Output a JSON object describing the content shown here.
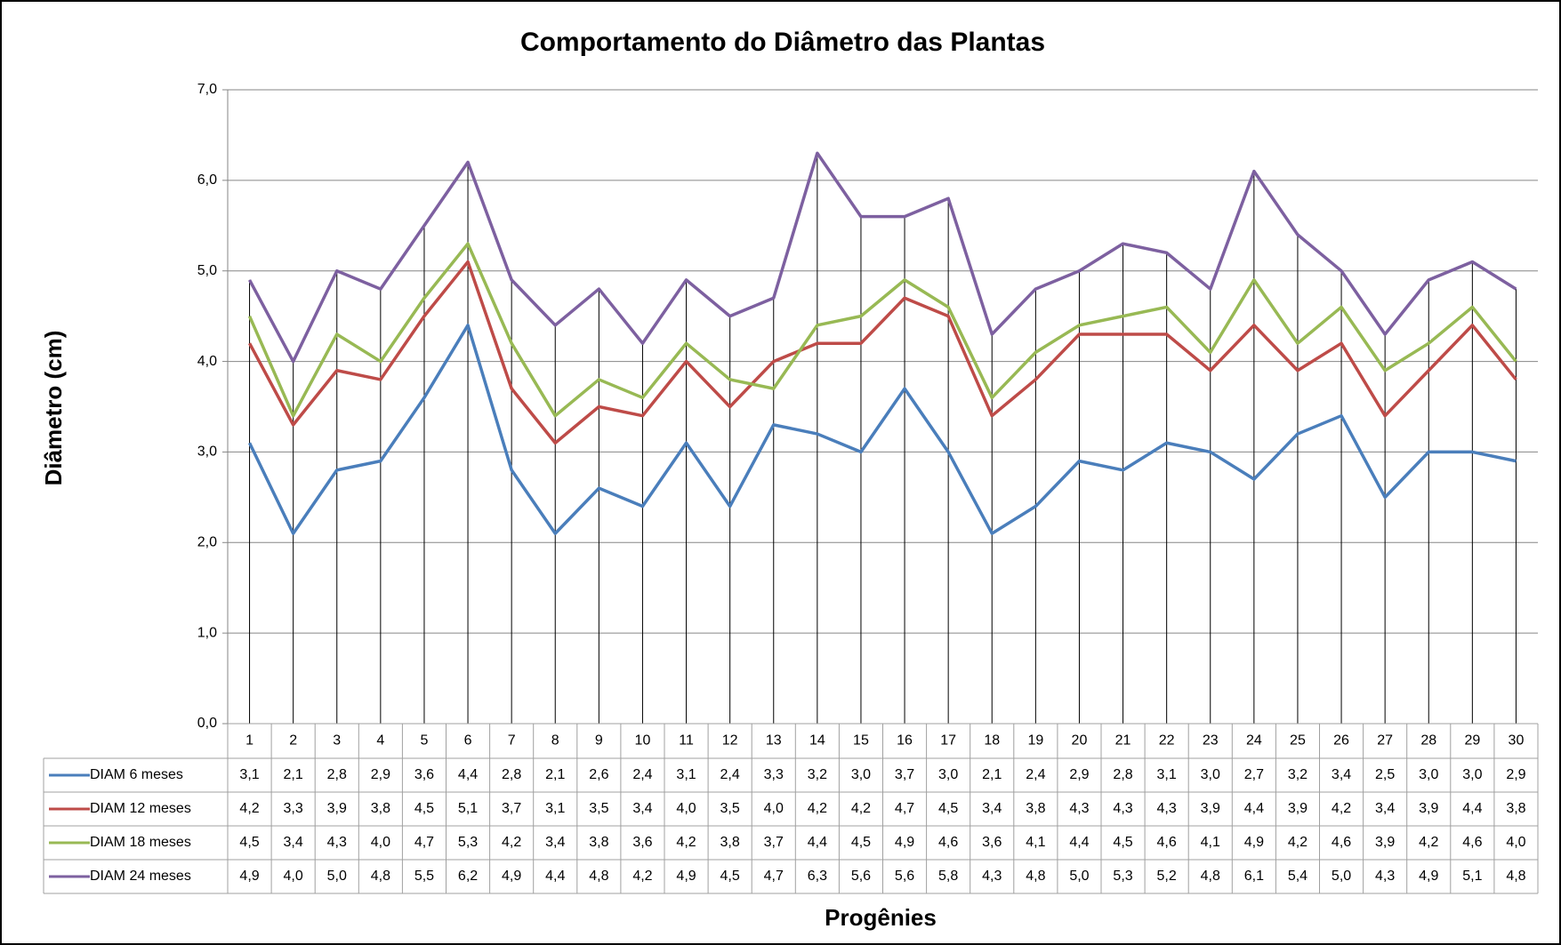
{
  "chart_data": {
    "type": "line",
    "title": "Comportamento do Diâmetro das Plantas",
    "x_label": "Progênies",
    "y_label": "Diâmetro (cm)",
    "categories": [
      "1",
      "2",
      "3",
      "4",
      "5",
      "6",
      "7",
      "8",
      "9",
      "10",
      "11",
      "12",
      "13",
      "14",
      "15",
      "16",
      "17",
      "18",
      "19",
      "20",
      "21",
      "22",
      "23",
      "24",
      "25",
      "26",
      "27",
      "28",
      "29",
      "30"
    ],
    "ylim": [
      0,
      7
    ],
    "yticks": [
      {
        "value": 0,
        "label": "0,0"
      },
      {
        "value": 1,
        "label": "1,0"
      },
      {
        "value": 2,
        "label": "2,0"
      },
      {
        "value": 3,
        "label": "3,0"
      },
      {
        "value": 4,
        "label": "4,0"
      },
      {
        "value": 5,
        "label": "5,0"
      },
      {
        "value": 6,
        "label": "6,0"
      },
      {
        "value": 7,
        "label": "7,0"
      }
    ],
    "grid": true,
    "drop_lines": true,
    "data_table": true,
    "series": [
      {
        "name": "DIAM 6 meses",
        "color": "#4a7ebb",
        "values": [
          3.1,
          2.1,
          2.8,
          2.9,
          3.6,
          4.4,
          2.8,
          2.1,
          2.6,
          2.4,
          3.1,
          2.4,
          3.3,
          3.2,
          3.0,
          3.7,
          3.0,
          2.1,
          2.4,
          2.9,
          2.8,
          3.1,
          3.0,
          2.7,
          3.2,
          3.4,
          2.5,
          3.0,
          3.0,
          2.9
        ],
        "value_labels": [
          "3,1",
          "2,1",
          "2,8",
          "2,9",
          "3,6",
          "4,4",
          "2,8",
          "2,1",
          "2,6",
          "2,4",
          "3,1",
          "2,4",
          "3,3",
          "3,2",
          "3,0",
          "3,7",
          "3,0",
          "2,1",
          "2,4",
          "2,9",
          "2,8",
          "3,1",
          "3,0",
          "2,7",
          "3,2",
          "3,4",
          "2,5",
          "3,0",
          "3,0",
          "2,9"
        ]
      },
      {
        "name": "DIAM 12 meses",
        "color": "#be4b48",
        "values": [
          4.2,
          3.3,
          3.9,
          3.8,
          4.5,
          5.1,
          3.7,
          3.1,
          3.5,
          3.4,
          4.0,
          3.5,
          4.0,
          4.2,
          4.2,
          4.7,
          4.5,
          3.4,
          3.8,
          4.3,
          4.3,
          4.3,
          3.9,
          4.4,
          3.9,
          4.2,
          3.4,
          3.9,
          4.4,
          3.8
        ],
        "value_labels": [
          "4,2",
          "3,3",
          "3,9",
          "3,8",
          "4,5",
          "5,1",
          "3,7",
          "3,1",
          "3,5",
          "3,4",
          "4,0",
          "3,5",
          "4,0",
          "4,2",
          "4,2",
          "4,7",
          "4,5",
          "3,4",
          "3,8",
          "4,3",
          "4,3",
          "4,3",
          "3,9",
          "4,4",
          "3,9",
          "4,2",
          "3,4",
          "3,9",
          "4,4",
          "3,8"
        ]
      },
      {
        "name": "DIAM 18 meses",
        "color": "#98b954",
        "values": [
          4.5,
          3.4,
          4.3,
          4.0,
          4.7,
          5.3,
          4.2,
          3.4,
          3.8,
          3.6,
          4.2,
          3.8,
          3.7,
          4.4,
          4.5,
          4.9,
          4.6,
          3.6,
          4.1,
          4.4,
          4.5,
          4.6,
          4.1,
          4.9,
          4.2,
          4.6,
          3.9,
          4.2,
          4.6,
          4.0
        ],
        "value_labels": [
          "4,5",
          "3,4",
          "4,3",
          "4,0",
          "4,7",
          "5,3",
          "4,2",
          "3,4",
          "3,8",
          "3,6",
          "4,2",
          "3,8",
          "3,7",
          "4,4",
          "4,5",
          "4,9",
          "4,6",
          "3,6",
          "4,1",
          "4,4",
          "4,5",
          "4,6",
          "4,1",
          "4,9",
          "4,2",
          "4,6",
          "3,9",
          "4,2",
          "4,6",
          "4,0"
        ]
      },
      {
        "name": "DIAM 24 meses",
        "color": "#7d60a0",
        "values": [
          4.9,
          4.0,
          5.0,
          4.8,
          5.5,
          6.2,
          4.9,
          4.4,
          4.8,
          4.2,
          4.9,
          4.5,
          4.7,
          6.3,
          5.6,
          5.6,
          5.8,
          4.3,
          4.8,
          5.0,
          5.3,
          5.2,
          4.8,
          6.1,
          5.4,
          5.0,
          4.3,
          4.9,
          5.1,
          4.8
        ],
        "value_labels": [
          "4,9",
          "4,0",
          "5,0",
          "4,8",
          "5,5",
          "6,2",
          "4,9",
          "4,4",
          "4,8",
          "4,2",
          "4,9",
          "4,5",
          "4,7",
          "6,3",
          "5,6",
          "5,6",
          "5,8",
          "4,3",
          "4,8",
          "5,0",
          "5,3",
          "5,2",
          "4,8",
          "6,1",
          "5,4",
          "5,0",
          "4,3",
          "4,9",
          "5,1",
          "4,8"
        ]
      }
    ]
  }
}
